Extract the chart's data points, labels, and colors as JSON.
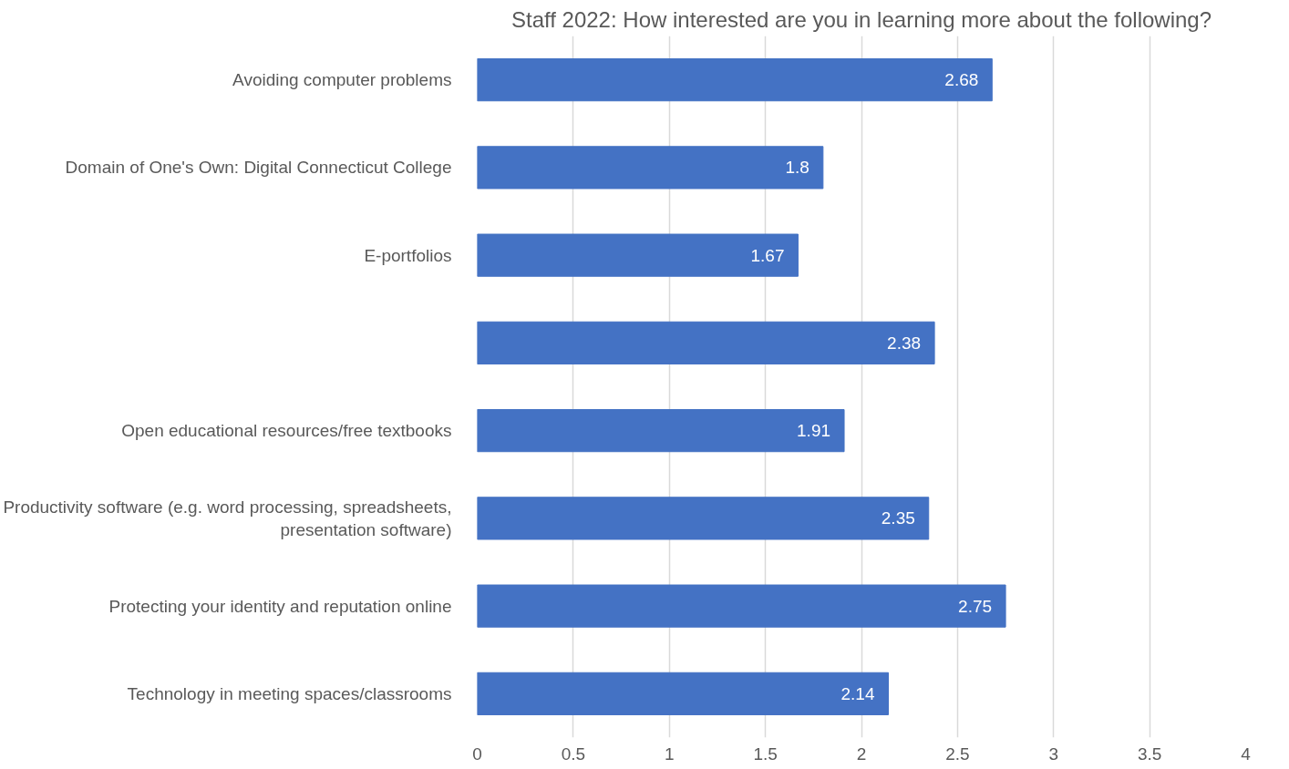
{
  "chart_data": {
    "type": "bar",
    "orientation": "horizontal",
    "title": "Staff 2022: How interested are you in learning more about the following?",
    "categories": [
      "Avoiding computer problems",
      "Domain of One's Own: Digital Connecticut College",
      "E-portfolios",
      null,
      "Open educational resources/free textbooks",
      "Productivity software (e.g. word processing, spreadsheets, presentation software)",
      "Protecting your identity and reputation online",
      "Technology in meeting spaces/classrooms"
    ],
    "values": [
      2.68,
      1.8,
      1.67,
      2.38,
      1.91,
      2.35,
      2.75,
      2.14
    ],
    "color": "#4472c4",
    "xlim": [
      0,
      4
    ],
    "xticks": [
      0,
      0.5,
      1,
      1.5,
      2,
      2.5,
      3,
      3.5,
      4
    ],
    "grid": "x",
    "data_labels": true
  }
}
